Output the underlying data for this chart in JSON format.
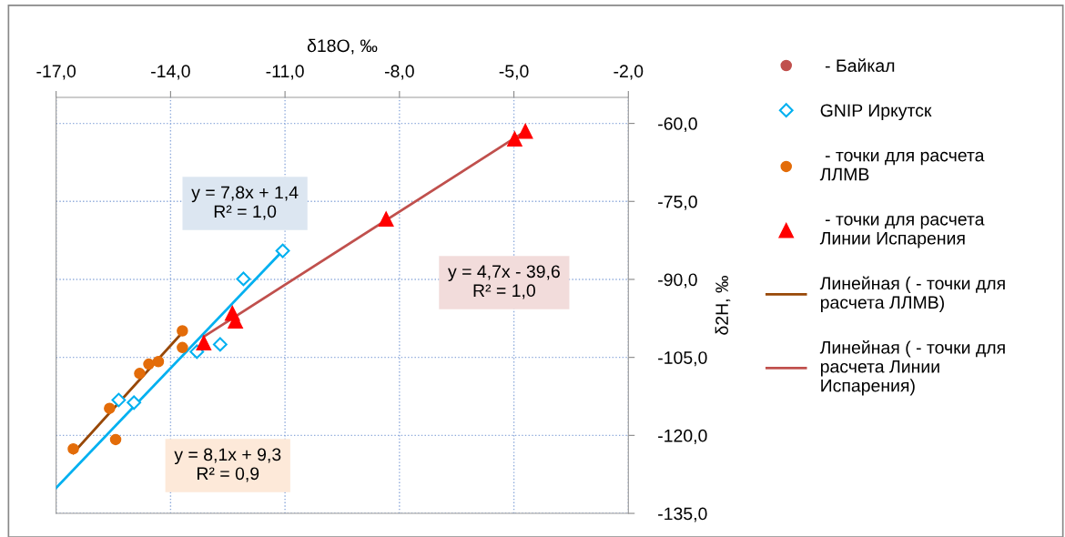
{
  "chart_data": {
    "type": "scatter",
    "xlabel": "δ18O, ‰",
    "ylabel": "δ2H, ‰",
    "xlim": [
      -17,
      -2
    ],
    "ylim": [
      -135,
      -55
    ],
    "xticks": [
      {
        "value": -17,
        "label": "-17,0"
      },
      {
        "value": -14,
        "label": "-14,0"
      },
      {
        "value": -11,
        "label": "-11,0"
      },
      {
        "value": -8,
        "label": "-8,0"
      },
      {
        "value": -5,
        "label": "-5,0"
      },
      {
        "value": -2,
        "label": "-2,0"
      }
    ],
    "yticks": [
      {
        "value": -135,
        "label": "-135,0"
      },
      {
        "value": -120,
        "label": "-120,0"
      },
      {
        "value": -105,
        "label": "-105,0"
      },
      {
        "value": -90,
        "label": "-90,0"
      },
      {
        "value": -75,
        "label": "-75,0"
      },
      {
        "value": -60,
        "label": "-60,0"
      }
    ],
    "grid": true,
    "legend": "right",
    "series": [
      {
        "name": " - Байкал",
        "marker": "circle",
        "color": "#c0504d"
      },
      {
        "name": "GNIP Иркутск",
        "marker": "diamond",
        "color": "#00b0f0",
        "x": [
          -15.36,
          -14.96,
          -13.31,
          -12.7,
          -12.09,
          -11.06
        ],
        "values": [
          -113.2,
          -113.7,
          -103.9,
          -102.5,
          -89.9,
          -84.5
        ]
      },
      {
        "name": " - точки для расчета\nЛЛМВ",
        "marker": "circle",
        "color": "#e36c09",
        "x": [
          -16.55,
          -15.6,
          -15.44,
          -14.81,
          -14.57,
          -14.32,
          -13.69,
          -13.69
        ],
        "values": [
          -122.6,
          -114.8,
          -120.8,
          -108.1,
          -106.3,
          -105.8,
          -99.9,
          -103.1
        ]
      },
      {
        "name": " - точки для расчета\nЛинии Испарения",
        "marker": "triangle",
        "color": "#ff0000",
        "x": [
          -13.13,
          -12.38,
          -12.3,
          -8.35,
          -4.98,
          -4.7
        ],
        "values": [
          -102.2,
          -96.5,
          -98.0,
          -78.4,
          -63.0,
          -61.5
        ]
      },
      {
        "name": "Линейная ( - точки для\nрасчета ЛЛМВ)",
        "type": "line",
        "marker": "none",
        "color": "#984807",
        "x": [
          -16.55,
          -13.69
        ],
        "values": [
          -123.4,
          -100.2
        ]
      },
      {
        "name": "Линейная ( - точки для\nрасчета Линии\nИспарения)",
        "type": "line",
        "marker": "none",
        "color": "#c0504d",
        "x": [
          -13.13,
          -4.7
        ],
        "values": [
          -101.0,
          -61.5
        ]
      },
      {
        "type": "line",
        "marker": "none",
        "color": "#00b0f0",
        "x": [
          -17,
          -11.06
        ],
        "values": [
          -130.1,
          -84.5
        ]
      }
    ],
    "annotations": [
      "y = 7,8x + 1,4\nR² = 1,0",
      "y = 4,7x - 39,6\nR² = 1,0",
      "y = 8,1x + 9,3\nR² = 0,9"
    ]
  }
}
